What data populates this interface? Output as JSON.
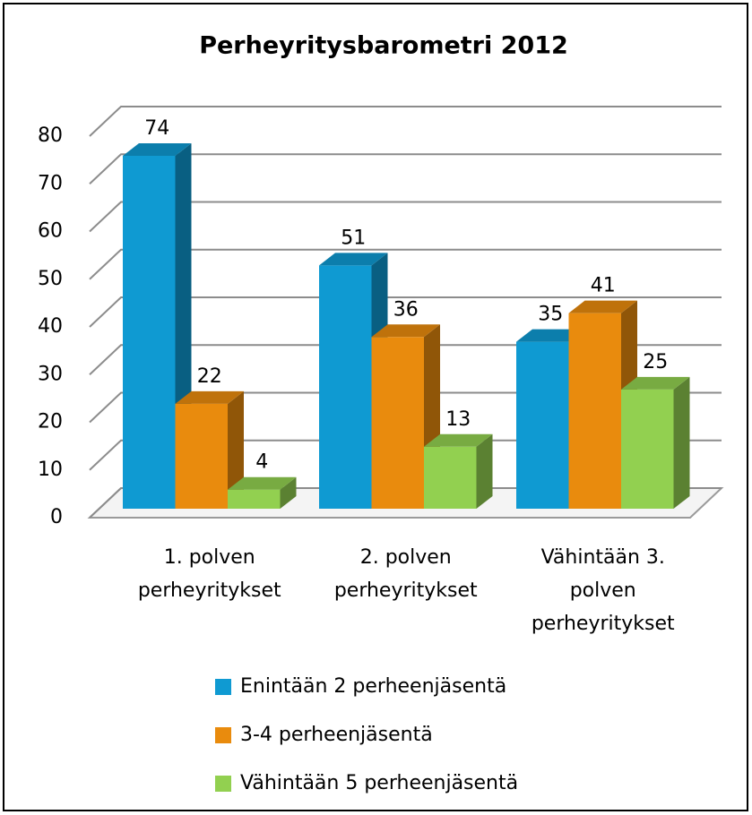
{
  "chart_data": {
    "type": "bar3d",
    "title": "Perheyritysbarometri 2012",
    "categories": [
      "1. polven perheyritykset",
      "2. polven perheyritykset",
      "Vähintään 3. polven perheyritykset"
    ],
    "series": [
      {
        "name": "Enintään 2 perheenjäsentä",
        "color": "#0f9ad2",
        "values": [
          74,
          51,
          35
        ]
      },
      {
        "name": "3-4 perheenjäsentä",
        "color": "#e98b0d",
        "values": [
          22,
          36,
          41
        ]
      },
      {
        "name": "Vähintään 5 perheenjäsentä",
        "color": "#92d050",
        "values": [
          4,
          13,
          25
        ]
      }
    ],
    "ylim": [
      0,
      80
    ],
    "yticks": [
      0,
      10,
      20,
      30,
      40,
      50,
      60,
      70,
      80
    ],
    "grid": true,
    "legend": "bottom"
  }
}
